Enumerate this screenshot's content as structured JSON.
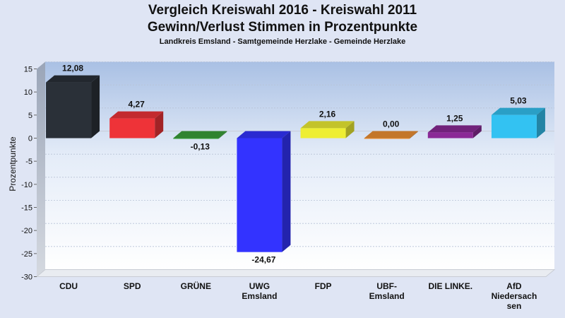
{
  "header": {
    "title_line1": "Vergleich Kreiswahl 2016 - Kreiswahl 2011",
    "title_line2": "Gewinn/Verlust Stimmen in Prozentpunkte",
    "subtitle": "Landkreis Emsland - Samtgemeinde Herzlake - Gemeinde Herzlake"
  },
  "chart_data": {
    "type": "bar",
    "title": "Vergleich Kreiswahl 2016 - Kreiswahl 2011 / Gewinn/Verlust Stimmen in Prozentpunkte",
    "subtitle": "Landkreis Emsland - Samtgemeinde Herzlake - Gemeinde Herzlake",
    "xlabel": "",
    "ylabel": "Prozentpunkte",
    "ylim": [
      -30,
      15
    ],
    "yticks": [
      15,
      10,
      5,
      0,
      -5,
      -10,
      -15,
      -20,
      -25,
      -30
    ],
    "grid": true,
    "categories": [
      [
        "CDU"
      ],
      [
        "SPD"
      ],
      [
        "GRÜNE"
      ],
      [
        "UWG",
        "Emsland"
      ],
      [
        "FDP"
      ],
      [
        "UBF-",
        "Emsland"
      ],
      [
        "DIE LINKE."
      ],
      [
        "AfD",
        "Niedersach",
        "sen"
      ]
    ],
    "values": [
      12.08,
      4.27,
      -0.13,
      -24.67,
      2.16,
      0.0,
      1.25,
      5.03
    ],
    "value_labels": [
      "12,08",
      "4,27",
      "-0,13",
      "-24,67",
      "2,16",
      "0,00",
      "1,25",
      "5,03"
    ],
    "colors": [
      "#2a3038",
      "#ee3338",
      "#3aa03a",
      "#3333ff",
      "#eeee33",
      "#ee9033",
      "#8a2a96",
      "#33c2f2"
    ]
  }
}
